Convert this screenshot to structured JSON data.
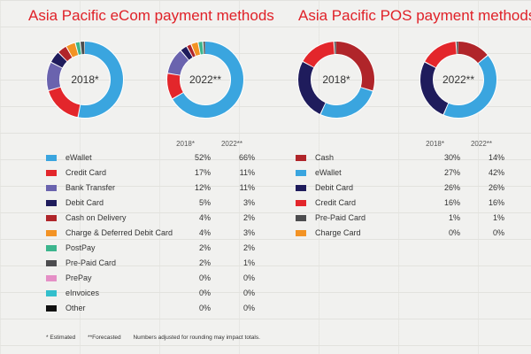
{
  "colors": {
    "eWallet": "#3aa5df",
    "Credit Card": "#e3262b",
    "Bank Transfer": "#6a63ae",
    "Debit Card": "#1f1c5c",
    "Cash on Delivery": "#b0252a",
    "Charge & Deferred Debit Card": "#f39324",
    "PostPay": "#3cb58d",
    "Pre-Paid Card": "#4d4d4f",
    "PrePay": "#e58fc6",
    "eInvoices": "#33bfcc",
    "Other": "#111111",
    "Cash": "#b0252a",
    "Charge Card": "#f39324"
  },
  "ecom": {
    "title": "Asia Pacific eCom payment methods",
    "col1": "2018*",
    "col2": "2022**"
  },
  "pos": {
    "title": "Asia Pacific POS payment methods",
    "col1": "2018*",
    "col2": "2022**"
  },
  "chart_data": [
    {
      "type": "pie",
      "title": "Asia Pacific eCom payment methods",
      "series": [
        {
          "name": "2018*",
          "values": [
            52,
            17,
            12,
            5,
            4,
            4,
            2,
            2,
            0,
            0,
            0
          ]
        },
        {
          "name": "2022**",
          "values": [
            66,
            11,
            11,
            3,
            2,
            3,
            2,
            1,
            0,
            0,
            0
          ]
        }
      ],
      "categories": [
        "eWallet",
        "Credit Card",
        "Bank Transfer",
        "Debit Card",
        "Cash on Delivery",
        "Charge & Deferred Debit Card",
        "PostPay",
        "Pre-Paid Card",
        "PrePay",
        "eInvoices",
        "Other"
      ],
      "value_labels": [
        [
          "52%",
          "66%"
        ],
        [
          "17%",
          "11%"
        ],
        [
          "12%",
          "11%"
        ],
        [
          "5%",
          "3%"
        ],
        [
          "4%",
          "2%"
        ],
        [
          "4%",
          "3%"
        ],
        [
          "2%",
          "2%"
        ],
        [
          "2%",
          "1%"
        ],
        [
          "0%",
          "0%"
        ],
        [
          "0%",
          "0%"
        ],
        [
          "0%",
          "0%"
        ]
      ]
    },
    {
      "type": "pie",
      "title": "Asia Pacific POS payment methods",
      "series": [
        {
          "name": "2018*",
          "values": [
            30,
            27,
            26,
            16,
            1,
            0
          ]
        },
        {
          "name": "2022**",
          "values": [
            14,
            42,
            26,
            16,
            1,
            0
          ]
        }
      ],
      "categories": [
        "Cash",
        "eWallet",
        "Debit Card",
        "Credit Card",
        "Pre-Paid Card",
        "Charge Card"
      ],
      "value_labels": [
        [
          "30%",
          "14%"
        ],
        [
          "27%",
          "42%"
        ],
        [
          "26%",
          "26%"
        ],
        [
          "16%",
          "16%"
        ],
        [
          "1%",
          "1%"
        ],
        [
          "0%",
          "0%"
        ]
      ]
    }
  ],
  "footnotes": {
    "estimated": "* Estimated",
    "forecasted": "**Forecasted",
    "rounding": "Numbers adjusted for rounding may impact totals."
  }
}
